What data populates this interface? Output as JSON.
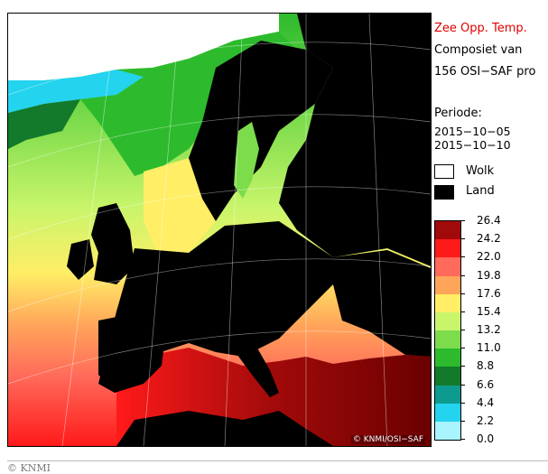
{
  "legend": {
    "title": "Zee Opp. Temp.",
    "subtitle_line1": "Composiet van",
    "subtitle_line2": "156 OSI−SAF pro",
    "period_label": "Periode:",
    "period_start": "2015−10−05",
    "period_end": "2015−10−10",
    "cloud_label": "Wolk",
    "land_label": "Land",
    "scale": [
      {
        "value": "26.4",
        "color": "#6b0000"
      },
      {
        "value": "24.2",
        "color": "#a10a0a"
      },
      {
        "value": "22.0",
        "color": "#ff1a1a"
      },
      {
        "value": "19.8",
        "color": "#ff6a5a"
      },
      {
        "value": "17.6",
        "color": "#ffa55a"
      },
      {
        "value": "15.4",
        "color": "#ffee66"
      },
      {
        "value": "13.2",
        "color": "#c9f56b"
      },
      {
        "value": "11.0",
        "color": "#7ddc4c"
      },
      {
        "value": "8.8",
        "color": "#2dbb2d"
      },
      {
        "value": "6.6",
        "color": "#127a2a"
      },
      {
        "value": "4.4",
        "color": "#0e9b8f"
      },
      {
        "value": "2.2",
        "color": "#24d3ee"
      },
      {
        "value": "0.0",
        "color": "#a8f4ff"
      }
    ],
    "cloud_color": "#ffffff",
    "land_color": "#000000"
  },
  "map": {
    "credit": "© KNMI/OSI−SAF"
  },
  "footer": {
    "text": "© KNMI"
  }
}
